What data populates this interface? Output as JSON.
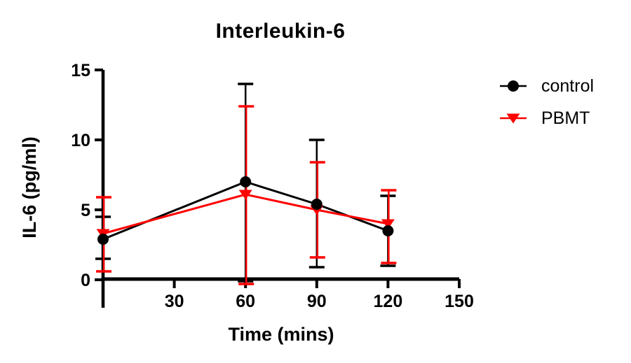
{
  "chart_data": {
    "type": "line",
    "title": "Interleukin-6",
    "xlabel": "Time (mins)",
    "ylabel": "IL-6 (pg/ml)",
    "xlim": [
      0,
      150
    ],
    "ylim": [
      0,
      15
    ],
    "x_ticks": [
      30,
      60,
      90,
      120,
      150
    ],
    "y_ticks": [
      0,
      5,
      10,
      15
    ],
    "grid": false,
    "legend_position": "right-top",
    "axis_color": "#000000",
    "background_color": "#ffffff",
    "error_bar_style": "cap",
    "series": [
      {
        "name": "control",
        "color": "#000000",
        "marker": "circle",
        "x": [
          0,
          60,
          90,
          120
        ],
        "y": [
          2.9,
          7.0,
          5.4,
          3.5
        ],
        "err_low": [
          1.5,
          -0.1,
          0.9,
          1.0
        ],
        "err_high": [
          4.5,
          14.0,
          10.0,
          6.0
        ]
      },
      {
        "name": "PBMT",
        "color": "#ff0000",
        "marker": "triangle-down",
        "x": [
          0,
          60,
          90,
          120
        ],
        "y": [
          3.3,
          6.1,
          5.0,
          4.0
        ],
        "err_low": [
          0.6,
          -0.3,
          1.6,
          1.2
        ],
        "err_high": [
          5.9,
          12.4,
          8.4,
          6.4
        ]
      }
    ]
  }
}
